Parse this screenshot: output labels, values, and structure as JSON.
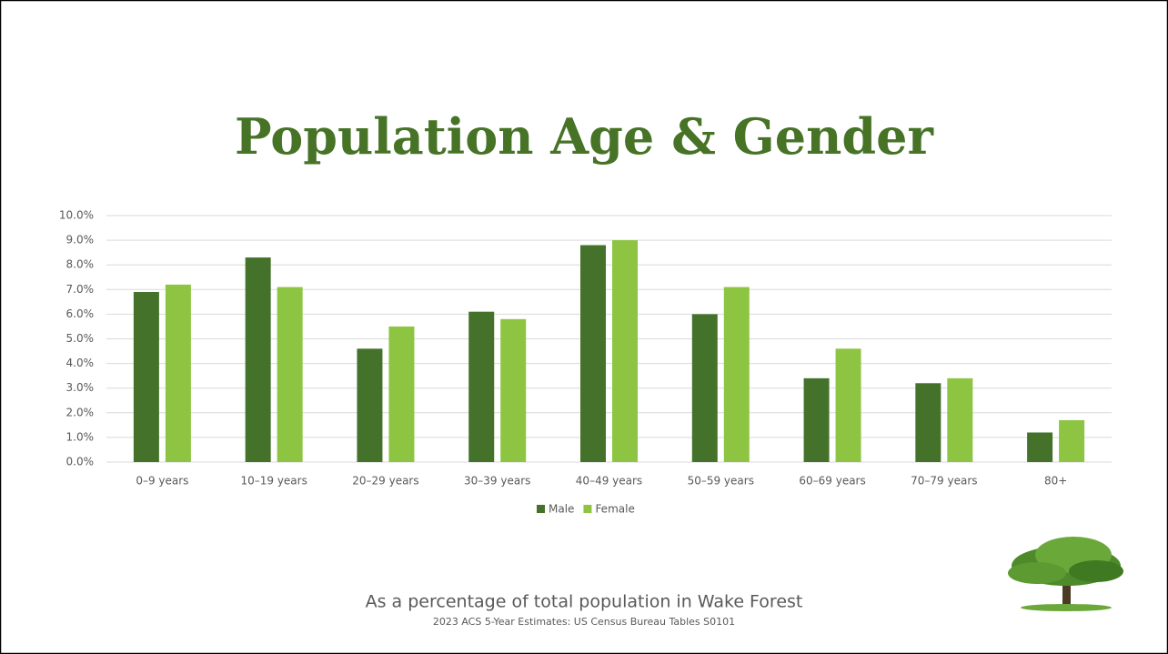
{
  "chart_data": {
    "type": "bar",
    "title": "Population Age & Gender",
    "subtitle": "As a percentage of total population in Wake Forest",
    "source": "2023 ACS 5-Year Estimates: US Census Bureau Tables S0101",
    "categories": [
      "0–9 years",
      "10–19 years",
      "20–29 years",
      "30–39 years",
      "40–49 years",
      "50–59 years",
      "60–69 years",
      "70–79 years",
      "80+"
    ],
    "series": [
      {
        "name": "Male",
        "color": "#44722a",
        "values": [
          6.9,
          8.3,
          4.6,
          6.1,
          8.8,
          6.0,
          3.4,
          3.2,
          1.2
        ]
      },
      {
        "name": "Female",
        "color": "#8dc542",
        "values": [
          7.2,
          7.1,
          5.5,
          5.8,
          9.0,
          7.1,
          4.6,
          3.4,
          1.7
        ]
      }
    ],
    "ylim": [
      0,
      10
    ],
    "yticks": [
      {
        "value": 0,
        "label": "0.0%"
      },
      {
        "value": 1,
        "label": "1.0%"
      },
      {
        "value": 2,
        "label": "2.0%"
      },
      {
        "value": 3,
        "label": "3.0%"
      },
      {
        "value": 4,
        "label": "4.0%"
      },
      {
        "value": 5,
        "label": "5.0%"
      },
      {
        "value": 6,
        "label": "6.0%"
      },
      {
        "value": 7,
        "label": "7.0%"
      },
      {
        "value": 8,
        "label": "8.0%"
      },
      {
        "value": 9,
        "label": "9.0%"
      },
      {
        "value": 10,
        "label": "10.0%"
      }
    ],
    "grid": true,
    "legend": "bottom"
  }
}
